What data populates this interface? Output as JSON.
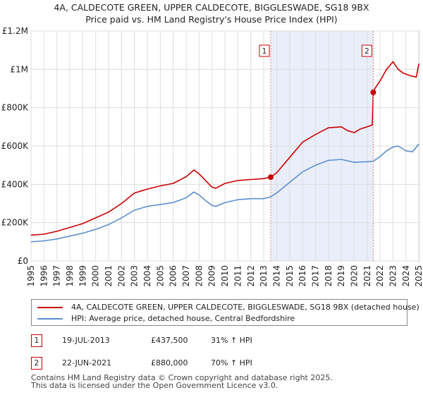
{
  "header": {
    "title_line1": "4A, CALDECOTE GREEN, UPPER CALDECOTE, BIGGLESWADE, SG18 9BX",
    "title_line2": "Price paid vs. HM Land Registry's House Price Index (HPI)"
  },
  "chart_data": {
    "type": "line",
    "title": "4A, CALDECOTE GREEN, UPPER CALDECOTE, BIGGLESWADE, SG18 9BX — Price paid vs. HM Land Registry's House Price Index (HPI)",
    "xlim": [
      1995,
      2025.1
    ],
    "ylim": [
      0,
      1200000
    ],
    "y_ticks": [
      0,
      200000,
      400000,
      600000,
      800000,
      1000000,
      1200000
    ],
    "y_tick_labels": [
      "£0",
      "£200K",
      "£400K",
      "£600K",
      "£800K",
      "£1M",
      "£1.2M"
    ],
    "x_ticks": [
      1995,
      1996,
      1997,
      1998,
      1999,
      2000,
      2001,
      2002,
      2003,
      2004,
      2005,
      2006,
      2007,
      2008,
      2009,
      2010,
      2011,
      2012,
      2013,
      2014,
      2015,
      2016,
      2017,
      2018,
      2019,
      2020,
      2021,
      2022,
      2023,
      2024,
      2025
    ],
    "grid": true,
    "shaded_period": [
      2013.54,
      2021.47
    ],
    "series": [
      {
        "name": "4A, CALDECOTE GREEN, UPPER CALDECOTE, BIGGLESWADE, SG18 9BX (detached house)",
        "color": "#cc0000",
        "x": [
          1995.0,
          1996.0,
          1997.0,
          1998.0,
          1999.0,
          2000.0,
          2001.0,
          2002.0,
          2003.0,
          2003.5,
          2004.0,
          2005.0,
          2006.0,
          2007.0,
          2007.6,
          2008.0,
          2008.5,
          2009.0,
          2009.3,
          2010.0,
          2011.0,
          2012.0,
          2013.0,
          2013.54,
          2014.0,
          2015.0,
          2016.0,
          2017.0,
          2018.0,
          2019.0,
          2019.5,
          2020.0,
          2020.5,
          2021.0,
          2021.4,
          2021.47,
          2021.6,
          2022.0,
          2022.5,
          2023.0,
          2023.4,
          2023.8,
          2024.0,
          2024.4,
          2024.8,
          2025.0
        ],
        "y": [
          135000,
          140000,
          155000,
          175000,
          195000,
          225000,
          255000,
          300000,
          355000,
          365000,
          375000,
          392000,
          405000,
          440000,
          475000,
          455000,
          420000,
          385000,
          380000,
          405000,
          420000,
          425000,
          430000,
          437500,
          460000,
          540000,
          620000,
          660000,
          695000,
          700000,
          680000,
          670000,
          690000,
          700000,
          710000,
          880000,
          900000,
          940000,
          1000000,
          1040000,
          1000000,
          980000,
          975000,
          965000,
          960000,
          1030000
        ]
      },
      {
        "name": "HPI: Average price, detached house, Central Bedfordshire",
        "color": "#5b8fcf",
        "x": [
          1995.0,
          1996.0,
          1997.0,
          1998.0,
          1999.0,
          2000.0,
          2001.0,
          2002.0,
          2003.0,
          2004.0,
          2005.0,
          2006.0,
          2007.0,
          2007.6,
          2008.0,
          2008.5,
          2009.0,
          2009.3,
          2010.0,
          2011.0,
          2012.0,
          2013.0,
          2013.54,
          2014.0,
          2015.0,
          2016.0,
          2017.0,
          2018.0,
          2019.0,
          2020.0,
          2021.0,
          2021.47,
          2022.0,
          2022.5,
          2023.0,
          2023.4,
          2024.0,
          2024.5,
          2025.0
        ],
        "y": [
          100000,
          105000,
          115000,
          130000,
          145000,
          165000,
          190000,
          225000,
          265000,
          285000,
          295000,
          305000,
          330000,
          360000,
          345000,
          315000,
          290000,
          285000,
          305000,
          320000,
          325000,
          325000,
          335000,
          355000,
          410000,
          465000,
          500000,
          525000,
          530000,
          515000,
          518000,
          520000,
          545000,
          575000,
          595000,
          600000,
          575000,
          570000,
          610000
        ]
      }
    ],
    "markers": [
      {
        "label": "1",
        "x": 2013.54,
        "y": 437500
      },
      {
        "label": "2",
        "x": 2021.47,
        "y": 880000
      }
    ]
  },
  "legend": {
    "property_label": "4A, CALDECOTE GREEN, UPPER CALDECOTE, BIGGLESWADE, SG18 9BX (detached house)",
    "hpi_label": "HPI: Average price, detached house, Central Bedfordshire"
  },
  "sales": [
    {
      "num": "1",
      "date": "19-JUL-2013",
      "price": "£437,500",
      "hpi": "31% ↑ HPI"
    },
    {
      "num": "2",
      "date": "22-JUN-2021",
      "price": "£880,000",
      "hpi": "70% ↑ HPI"
    }
  ],
  "footer": {
    "line1": "Contains HM Land Registry data © Crown copyright and database right 2025.",
    "line2": "This data is licensed under the Open Government Licence v3.0."
  }
}
